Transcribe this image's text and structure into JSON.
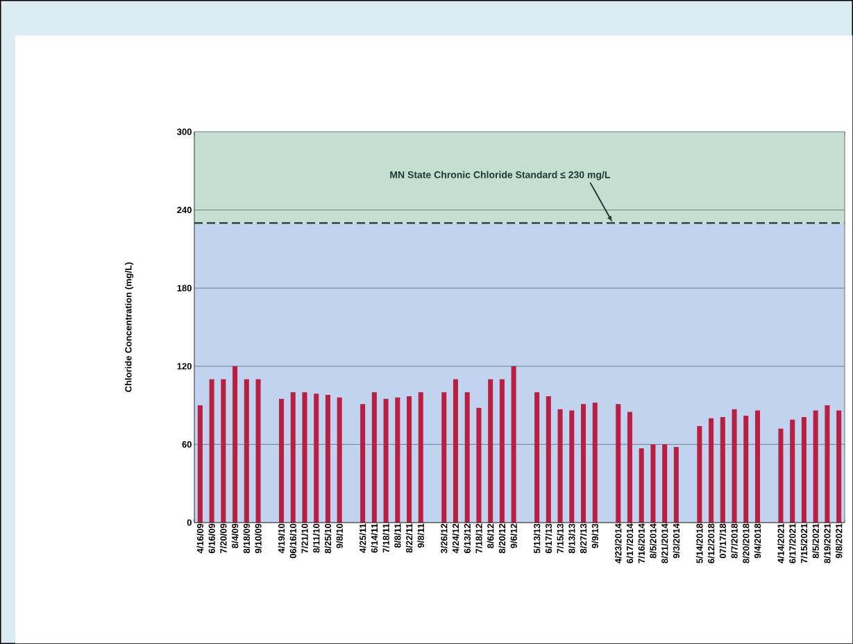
{
  "chart_data": {
    "type": "bar",
    "ylabel": "Chloride Concentration (mg/L)",
    "categories": [
      "4/16/09",
      "6/16/09",
      "7/20/09",
      "8/4/09",
      "8/18/09",
      "9/10/09",
      null,
      "4/19/10",
      "06/16/10",
      "7/21/10",
      "8/11/10",
      "8/25/10",
      "9/8/10",
      null,
      "4/25/11",
      "6/14/11",
      "7/18/11",
      "8/8/11",
      "8/22/11",
      "9/8/11",
      null,
      "3/26/12",
      "4/24/12",
      "6/13/12",
      "7/18/12",
      "8/6/12",
      "8/20/12",
      "9/6/12",
      null,
      "5/13/13",
      "6/17/13",
      "7/15/13",
      "8/13/13",
      "8/27/13",
      "9/9/13",
      null,
      "4/23/2014",
      "6/17/2014",
      "7/16/2014",
      "8/5/2014",
      "8/21/2014",
      "9/3/2014",
      null,
      "5/14/2018",
      "6/12/2018",
      "07/17/18",
      "8/7/2018",
      "8/20/2018",
      "9/4/2018",
      null,
      "4/14/2021",
      "6/17/2021",
      "7/15/2021",
      "8/5/2021",
      "8/19/2021",
      "9/8/2021"
    ],
    "values": [
      90,
      110,
      110,
      120,
      110,
      110,
      null,
      95,
      100,
      100,
      99,
      98,
      96,
      null,
      91,
      100,
      95,
      96,
      97,
      100,
      null,
      100,
      110,
      100,
      88,
      110,
      110,
      120,
      null,
      100,
      97,
      87,
      86,
      91,
      92,
      null,
      91,
      85,
      57,
      60,
      60,
      58,
      null,
      74,
      80,
      81,
      87,
      82,
      86,
      null,
      72,
      79,
      81,
      86,
      90,
      86
    ],
    "color": "#b81f40",
    "ylim": [
      0,
      300
    ],
    "yticks": [
      0,
      60,
      120,
      180,
      240,
      300
    ],
    "grid": "y",
    "bands": [
      {
        "axis": "y",
        "from": 0,
        "to": 230,
        "color": "#c1d3ef"
      },
      {
        "axis": "y",
        "from": 230,
        "to": 300,
        "color": "#c4dfd1"
      }
    ],
    "ref_lines": [
      {
        "axis": "y",
        "value": 230,
        "label": "MN State Chronic Chloride Standard  ≤ 230 mg/L",
        "color": "#1d3a36",
        "line_style": "dashed"
      }
    ]
  }
}
